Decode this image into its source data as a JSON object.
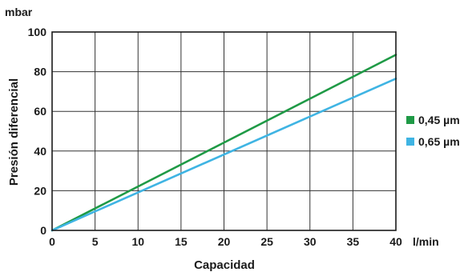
{
  "chart_data": {
    "type": "line",
    "title": "",
    "xlabel": "Capacidad",
    "ylabel": "Presión diferencial",
    "x_unit": "l/min",
    "y_unit": "mbar",
    "xlim": [
      0,
      40
    ],
    "ylim": [
      0,
      100
    ],
    "x_ticks": [
      0,
      5,
      10,
      15,
      20,
      25,
      30,
      35,
      40
    ],
    "y_ticks": [
      0,
      20,
      40,
      60,
      80,
      100
    ],
    "x_tick_labels": [
      "0",
      "5",
      "10",
      "15",
      "20",
      "25",
      "30",
      "35",
      "40"
    ],
    "y_tick_labels": [
      "0",
      "20",
      "40",
      "60",
      "80",
      "100"
    ],
    "grid": true,
    "legend_position": "right",
    "series": [
      {
        "name": "0,45 µm",
        "color": "#1f9a46",
        "x": [
          0,
          40
        ],
        "y": [
          0,
          88.5
        ]
      },
      {
        "name": "0,65 µm",
        "color": "#3fb4e3",
        "x": [
          0,
          40
        ],
        "y": [
          0,
          76.5
        ]
      }
    ]
  }
}
